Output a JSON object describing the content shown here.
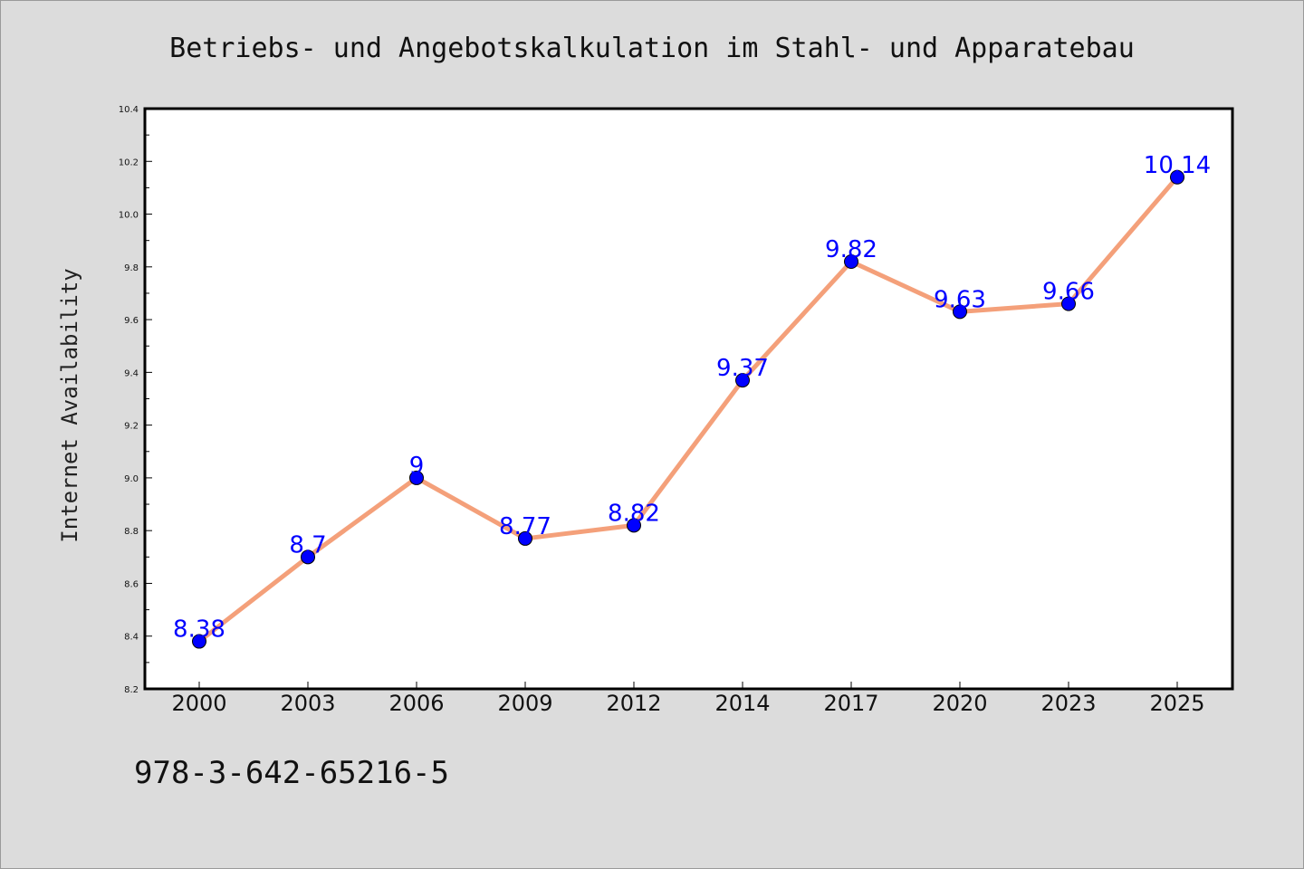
{
  "footer_text": "978-3-642-65216-5",
  "colors": {
    "background": "#dcdcdc",
    "plot_background": "#ffffff",
    "line": "#f4a07a",
    "marker": "#0000ff",
    "data_label": "#0000ff"
  },
  "chart_data": {
    "type": "line",
    "title": "Betriebs- und Angebotskalkulation im Stahl- und Apparatebau",
    "xlabel": "",
    "ylabel": "Internet Availability",
    "categories": [
      "2000",
      "2003",
      "2006",
      "2009",
      "2012",
      "2014",
      "2017",
      "2020",
      "2023",
      "2025"
    ],
    "values": [
      8.38,
      8.7,
      9,
      8.77,
      8.82,
      9.37,
      9.82,
      9.63,
      9.66,
      10.14
    ],
    "data_labels": [
      "8.38",
      "8.7",
      "9",
      "8.77",
      "8.82",
      "9.37",
      "9.82",
      "9.63",
      "9.66",
      "10.14"
    ],
    "ylim": [
      8.2,
      10.4
    ],
    "yticks": [
      "8.2",
      "8.4",
      "8.6",
      "8.8",
      "9.0",
      "9.2",
      "9.4",
      "9.6",
      "9.8",
      "10.0",
      "10.2",
      "10.4"
    ],
    "grid": false,
    "legend": "none"
  }
}
